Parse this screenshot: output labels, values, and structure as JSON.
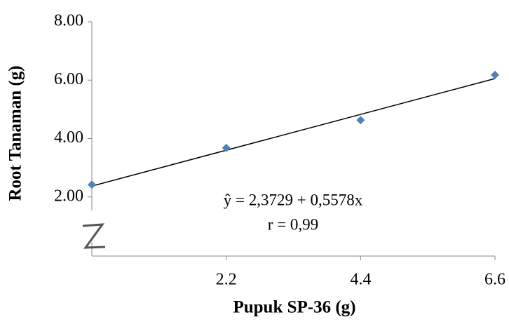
{
  "chart_data": {
    "type": "scatter",
    "x_label": "Pupuk SP-36 (g)",
    "y_label": "Root Tanaman (g)",
    "annotations": [
      "ŷ = 2,3729 + 0,5578x",
      "r = 0,99"
    ],
    "series": [
      {
        "color": "#4f81bd",
        "x": [
          0,
          2.2,
          4.4,
          6.6
        ],
        "values": [
          2.42,
          3.68,
          4.63,
          6.18
        ]
      }
    ],
    "trendline": {
      "intercept": 2.3729,
      "slope": 0.5578,
      "color": "#000000"
    },
    "xlim": [
      0,
      6.6
    ],
    "xticks": [
      2.2,
      4.4,
      6.6
    ],
    "ylim": [
      0,
      8
    ],
    "yticks": [
      {
        "value": 2,
        "label": "2.00"
      },
      {
        "value": 4,
        "label": "4.00"
      },
      {
        "value": 6,
        "label": "6.00"
      },
      {
        "value": 8,
        "label": "8.00"
      }
    ]
  }
}
